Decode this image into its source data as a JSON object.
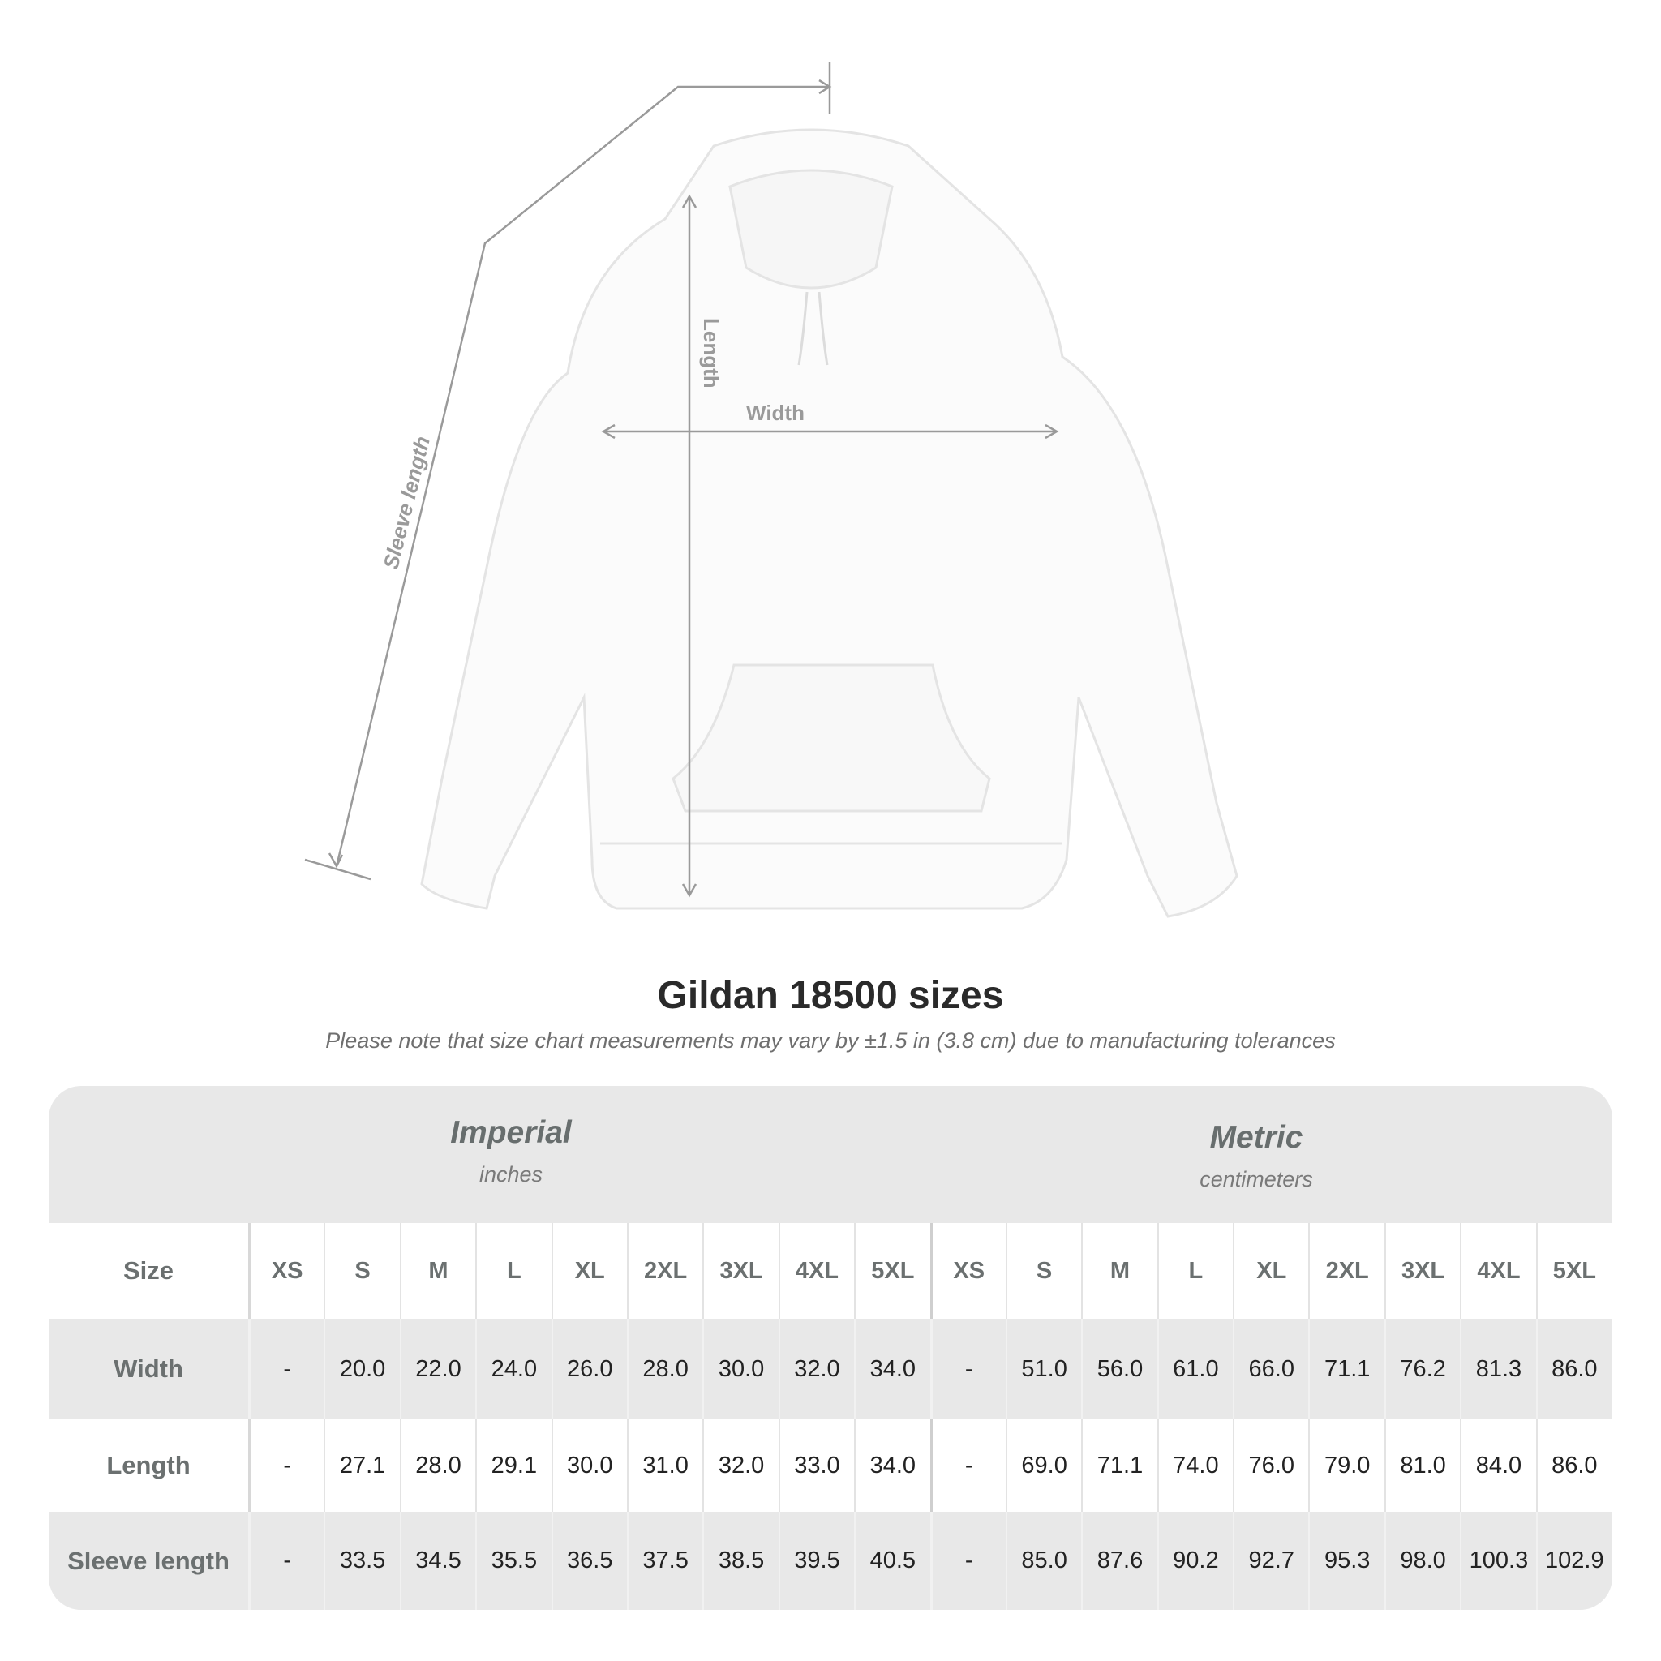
{
  "diagram": {
    "labels": {
      "length": "Length",
      "width": "Width",
      "sleeve_length": "Sleeve length"
    },
    "line_color": "#9a9a9a"
  },
  "title": "Gildan 18500 sizes",
  "note": "Please note that size chart measurements may vary by ±1.5 in (3.8 cm) due to manufacturing tolerances",
  "table": {
    "groups": [
      {
        "title": "Imperial",
        "unit": "inches"
      },
      {
        "title": "Metric",
        "unit": "centimeters"
      }
    ],
    "size_label": "Size",
    "sizes": [
      "XS",
      "S",
      "M",
      "L",
      "XL",
      "2XL",
      "3XL",
      "4XL",
      "5XL"
    ],
    "rows": [
      {
        "label": "Width",
        "imperial": [
          "-",
          "20.0",
          "22.0",
          "24.0",
          "26.0",
          "28.0",
          "30.0",
          "32.0",
          "34.0"
        ],
        "metric": [
          "-",
          "51.0",
          "56.0",
          "61.0",
          "66.0",
          "71.1",
          "76.2",
          "81.3",
          "86.0"
        ]
      },
      {
        "label": "Length",
        "imperial": [
          "-",
          "27.1",
          "28.0",
          "29.1",
          "30.0",
          "31.0",
          "32.0",
          "33.0",
          "34.0"
        ],
        "metric": [
          "-",
          "69.0",
          "71.1",
          "74.0",
          "76.0",
          "79.0",
          "81.0",
          "84.0",
          "86.0"
        ]
      },
      {
        "label": "Sleeve length",
        "imperial": [
          "-",
          "33.5",
          "34.5",
          "35.5",
          "36.5",
          "37.5",
          "38.5",
          "39.5",
          "40.5"
        ],
        "metric": [
          "-",
          "85.0",
          "87.6",
          "90.2",
          "92.7",
          "95.3",
          "98.0",
          "100.3",
          "102.9"
        ]
      }
    ],
    "colors": {
      "band": "#e8e8e8",
      "label": "#6b7070"
    }
  }
}
